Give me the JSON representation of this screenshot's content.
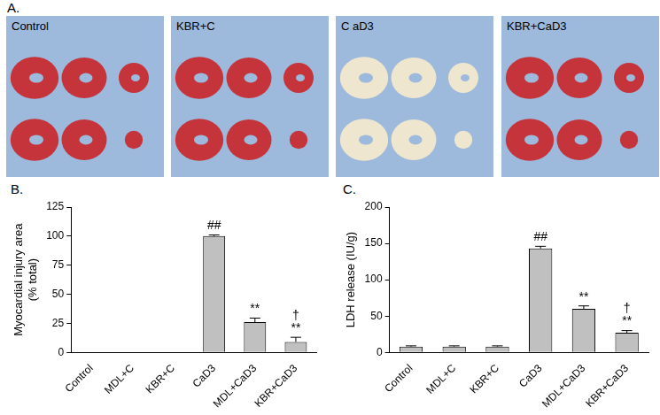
{
  "photo_panel": {
    "title": "A.",
    "labels": [
      "Control",
      "KBR+C",
      "C aD3",
      "KBR+CaD3"
    ]
  },
  "chart_data": [
    {
      "type": "bar",
      "title": "B.",
      "y_label": [
        "Myocardial injury area",
        "(% total)"
      ],
      "categories": [
        "Control",
        "MDL+C",
        "KBR+C",
        "CaD3",
        "MDL+CaD3",
        "KBR+CaD3"
      ],
      "values": [
        0,
        0,
        0,
        100,
        26,
        9
      ],
      "error": [
        0,
        0,
        0,
        1,
        3.5,
        4
      ],
      "annotations": [
        null,
        null,
        null,
        [
          "##"
        ],
        [
          "**"
        ],
        [
          "†",
          "**"
        ]
      ],
      "color": "#c0c0c0",
      "ylim": [
        0,
        125
      ],
      "yticks": [
        0,
        25,
        50,
        75,
        100,
        125
      ],
      "grid": false
    },
    {
      "type": "bar",
      "title": "C.",
      "y_label": [
        "LDH release (IU/g)"
      ],
      "categories": [
        "Control",
        "MDL+C",
        "KBR+C",
        "CaD3",
        "MDL+CaD3",
        "KBR+CaD3"
      ],
      "values": [
        8,
        8,
        8,
        143,
        60,
        27
      ],
      "error": [
        1,
        1,
        1,
        3,
        4,
        3
      ],
      "annotations": [
        null,
        null,
        null,
        [
          "##"
        ],
        [
          "**"
        ],
        [
          "†",
          "**"
        ]
      ],
      "color": "#c0c0c0",
      "ylim": [
        0,
        200
      ],
      "yticks": [
        0,
        50,
        100,
        150,
        200
      ],
      "grid": false
    }
  ]
}
